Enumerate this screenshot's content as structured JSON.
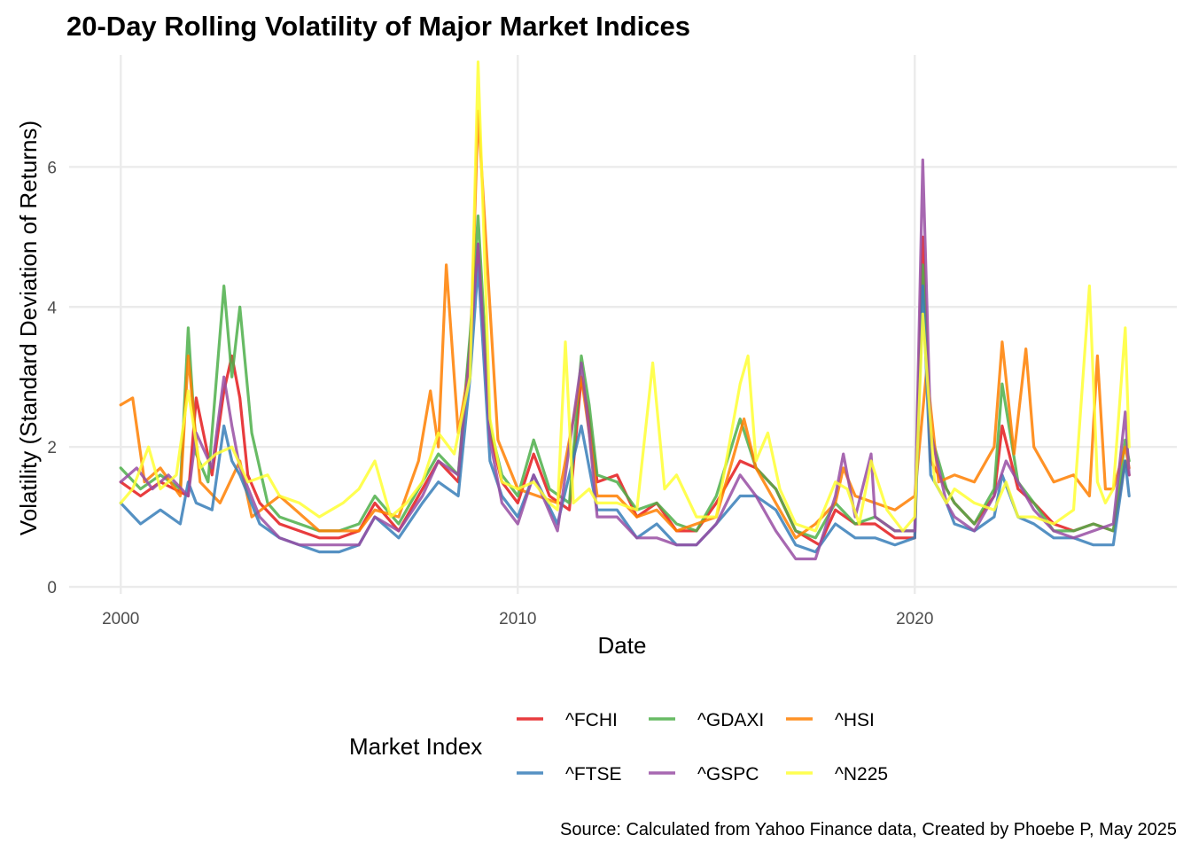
{
  "chart_data": {
    "type": "line",
    "title": "20-Day Rolling Volatility of Major Market Indices",
    "xlabel": "Date",
    "ylabel": "Volatility (Standard Deviation of Returns)",
    "caption": "Source: Calculated from Yahoo Finance data, Created by Phoebe P, May 2025",
    "xlim": [
      1998.7,
      2026.6
    ],
    "ylim": [
      -0.1,
      7.6
    ],
    "x_ticks": [
      2000,
      2010,
      2020
    ],
    "x_tick_labels": [
      "2000",
      "2010",
      "2020"
    ],
    "y_ticks": [
      0,
      2,
      4,
      6
    ],
    "y_tick_labels": [
      "0",
      "2",
      "4",
      "6"
    ],
    "grid": true,
    "legend": {
      "title": "Market Index",
      "position": "bottom",
      "rows": 2
    },
    "series": [
      {
        "name": "^FCHI",
        "color": "#E41A1C",
        "x": [
          2000.0,
          2000.5,
          2001.0,
          2001.7,
          2001.9,
          2002.3,
          2002.6,
          2002.8,
          2003.0,
          2003.2,
          2003.5,
          2004.0,
          2004.5,
          2005.0,
          2005.5,
          2006.0,
          2006.4,
          2007.0,
          2007.6,
          2008.0,
          2008.5,
          2008.8,
          2009.0,
          2009.3,
          2009.6,
          2010.0,
          2010.4,
          2010.8,
          2011.3,
          2011.6,
          2011.8,
          2012.0,
          2012.5,
          2013.0,
          2013.5,
          2014.0,
          2014.5,
          2015.0,
          2015.6,
          2016.0,
          2016.5,
          2017.0,
          2017.6,
          2018.0,
          2018.5,
          2019.0,
          2019.5,
          2020.0,
          2020.2,
          2020.4,
          2020.8,
          2021.0,
          2021.5,
          2022.0,
          2022.2,
          2022.6,
          2023.0,
          2023.5,
          2024.0,
          2024.5,
          2025.0,
          2025.3,
          2025.4
        ],
        "y": [
          1.5,
          1.3,
          1.5,
          1.3,
          2.7,
          1.6,
          2.8,
          3.3,
          2.7,
          1.6,
          1.2,
          0.9,
          0.8,
          0.7,
          0.7,
          0.8,
          1.2,
          0.8,
          1.4,
          1.8,
          1.5,
          3.5,
          4.9,
          2.2,
          1.5,
          1.2,
          1.9,
          1.3,
          1.1,
          3.0,
          2.4,
          1.5,
          1.6,
          1.0,
          1.2,
          0.8,
          0.8,
          1.2,
          1.8,
          1.7,
          1.4,
          0.8,
          0.6,
          1.1,
          0.9,
          0.9,
          0.7,
          0.7,
          5.0,
          1.8,
          1.4,
          1.2,
          0.9,
          1.3,
          2.3,
          1.4,
          1.2,
          0.9,
          0.8,
          0.9,
          0.8,
          1.8,
          1.6
        ]
      },
      {
        "name": "^GDAXI",
        "color": "#4DAF4A",
        "x": [
          2000.0,
          2000.5,
          2001.0,
          2001.5,
          2001.7,
          2001.9,
          2002.2,
          2002.6,
          2002.8,
          2003.0,
          2003.3,
          2003.7,
          2004.0,
          2004.5,
          2005.0,
          2005.5,
          2006.0,
          2006.4,
          2007.0,
          2007.6,
          2008.0,
          2008.5,
          2008.8,
          2009.0,
          2009.3,
          2009.6,
          2010.0,
          2010.4,
          2010.8,
          2011.3,
          2011.6,
          2011.8,
          2012.0,
          2012.5,
          2013.0,
          2013.5,
          2014.0,
          2014.5,
          2015.0,
          2015.6,
          2016.0,
          2016.5,
          2017.0,
          2017.5,
          2018.0,
          2018.5,
          2019.0,
          2019.5,
          2020.0,
          2020.2,
          2020.4,
          2020.8,
          2021.0,
          2021.5,
          2022.0,
          2022.2,
          2022.6,
          2023.0,
          2023.5,
          2024.0,
          2024.5,
          2025.0,
          2025.3,
          2025.4
        ],
        "y": [
          1.7,
          1.4,
          1.6,
          1.4,
          3.7,
          1.9,
          1.5,
          4.3,
          3.0,
          4.0,
          2.2,
          1.2,
          1.0,
          0.9,
          0.8,
          0.8,
          0.9,
          1.3,
          0.9,
          1.5,
          1.9,
          1.6,
          3.6,
          5.3,
          2.3,
          1.6,
          1.3,
          2.1,
          1.4,
          1.2,
          3.3,
          2.6,
          1.6,
          1.5,
          1.1,
          1.2,
          0.9,
          0.8,
          1.3,
          2.4,
          1.7,
          1.4,
          0.8,
          0.7,
          1.2,
          0.9,
          1.0,
          0.8,
          0.8,
          4.6,
          2.2,
          1.4,
          1.2,
          0.9,
          1.4,
          2.9,
          1.5,
          1.2,
          0.8,
          0.8,
          0.9,
          0.8,
          2.1,
          1.8
        ]
      },
      {
        "name": "^HSI",
        "color": "#FF7F00",
        "x": [
          2000.0,
          2000.3,
          2000.6,
          2001.0,
          2001.5,
          2001.7,
          2002.0,
          2002.5,
          2003.0,
          2003.3,
          2004.0,
          2004.4,
          2005.0,
          2006.0,
          2006.4,
          2007.0,
          2007.5,
          2007.8,
          2008.0,
          2008.2,
          2008.5,
          2008.8,
          2009.0,
          2009.5,
          2010.0,
          2010.5,
          2011.0,
          2011.6,
          2011.8,
          2012.0,
          2012.5,
          2013.0,
          2013.5,
          2014.0,
          2015.0,
          2015.5,
          2015.7,
          2016.0,
          2016.5,
          2017.0,
          2017.5,
          2018.0,
          2018.2,
          2018.5,
          2019.0,
          2019.5,
          2020.0,
          2020.3,
          2020.6,
          2021.0,
          2021.5,
          2021.8,
          2022.0,
          2022.2,
          2022.5,
          2022.8,
          2023.0,
          2023.5,
          2024.0,
          2024.4,
          2024.6,
          2024.8,
          2025.0,
          2025.3,
          2025.4
        ],
        "y": [
          2.6,
          2.7,
          1.5,
          1.7,
          1.3,
          3.3,
          1.5,
          1.2,
          1.8,
          1.0,
          1.3,
          1.1,
          0.8,
          0.8,
          1.1,
          1.0,
          1.8,
          2.8,
          2.0,
          4.6,
          2.2,
          3.2,
          6.8,
          2.1,
          1.4,
          1.3,
          1.2,
          3.0,
          2.2,
          1.3,
          1.3,
          1.0,
          1.1,
          0.8,
          1.0,
          2.0,
          2.4,
          1.7,
          1.2,
          0.7,
          0.9,
          1.2,
          1.7,
          1.3,
          1.2,
          1.1,
          1.3,
          3.1,
          1.5,
          1.6,
          1.5,
          1.8,
          2.0,
          3.5,
          1.9,
          3.4,
          2.0,
          1.5,
          1.6,
          1.3,
          3.3,
          1.4,
          1.4,
          2.0,
          1.7
        ]
      },
      {
        "name": "^FTSE",
        "color": "#377EB8",
        "x": [
          2000.0,
          2000.5,
          2001.0,
          2001.5,
          2001.7,
          2001.9,
          2002.3,
          2002.6,
          2002.8,
          2003.0,
          2003.5,
          2004.0,
          2004.5,
          2005.0,
          2005.5,
          2006.0,
          2006.4,
          2007.0,
          2007.6,
          2008.0,
          2008.5,
          2008.8,
          2009.0,
          2009.3,
          2009.6,
          2010.0,
          2010.4,
          2011.0,
          2011.6,
          2012.0,
          2012.5,
          2013.0,
          2013.5,
          2014.0,
          2014.5,
          2015.0,
          2015.6,
          2016.0,
          2016.5,
          2017.0,
          2017.5,
          2018.0,
          2018.5,
          2019.0,
          2019.5,
          2020.0,
          2020.2,
          2020.4,
          2020.8,
          2021.0,
          2021.5,
          2022.0,
          2022.2,
          2022.6,
          2023.0,
          2023.5,
          2024.0,
          2024.5,
          2025.0,
          2025.3,
          2025.4
        ],
        "y": [
          1.2,
          0.9,
          1.1,
          0.9,
          1.5,
          1.2,
          1.1,
          2.3,
          1.8,
          1.6,
          0.9,
          0.7,
          0.6,
          0.5,
          0.5,
          0.6,
          1.0,
          0.7,
          1.2,
          1.5,
          1.3,
          3.0,
          4.6,
          1.8,
          1.3,
          1.0,
          1.6,
          0.9,
          2.3,
          1.1,
          1.1,
          0.7,
          0.9,
          0.6,
          0.6,
          0.9,
          1.3,
          1.3,
          1.1,
          0.6,
          0.5,
          0.9,
          0.7,
          0.7,
          0.6,
          0.7,
          4.3,
          1.6,
          1.2,
          0.9,
          0.8,
          1.0,
          1.6,
          1.0,
          0.9,
          0.7,
          0.7,
          0.6,
          0.6,
          1.8,
          1.3
        ]
      },
      {
        "name": "^GSPC",
        "color": "#984EA3",
        "x": [
          2000.0,
          2000.4,
          2000.8,
          2001.2,
          2001.7,
          2001.9,
          2002.3,
          2002.6,
          2002.8,
          2003.0,
          2003.5,
          2004.0,
          2004.5,
          2005.0,
          2005.5,
          2006.0,
          2006.4,
          2007.0,
          2007.6,
          2008.0,
          2008.5,
          2008.8,
          2009.0,
          2009.3,
          2009.6,
          2010.0,
          2010.4,
          2011.0,
          2011.6,
          2011.8,
          2012.0,
          2012.5,
          2013.0,
          2013.5,
          2014.0,
          2014.5,
          2015.0,
          2015.6,
          2016.0,
          2016.5,
          2017.0,
          2017.5,
          2018.0,
          2018.2,
          2018.5,
          2018.9,
          2019.0,
          2019.5,
          2020.0,
          2020.2,
          2020.4,
          2020.8,
          2021.0,
          2021.5,
          2022.0,
          2022.3,
          2022.6,
          2023.0,
          2023.5,
          2024.0,
          2024.5,
          2025.0,
          2025.3,
          2025.4
        ],
        "y": [
          1.5,
          1.7,
          1.4,
          1.6,
          1.3,
          2.2,
          1.7,
          3.0,
          2.3,
          1.7,
          1.0,
          0.7,
          0.6,
          0.6,
          0.6,
          0.6,
          1.0,
          0.8,
          1.3,
          1.8,
          1.6,
          3.4,
          4.9,
          2.1,
          1.2,
          0.9,
          1.6,
          0.8,
          3.2,
          2.2,
          1.0,
          1.0,
          0.7,
          0.7,
          0.6,
          0.6,
          0.9,
          1.6,
          1.3,
          0.8,
          0.4,
          0.4,
          1.3,
          1.9,
          1.0,
          1.9,
          1.0,
          0.8,
          0.8,
          6.1,
          2.2,
          1.2,
          1.0,
          0.8,
          1.3,
          1.8,
          1.5,
          1.1,
          0.8,
          0.7,
          0.8,
          0.9,
          2.5,
          1.6
        ]
      },
      {
        "name": "^N225",
        "color": "#FFFF33",
        "x": [
          2000.0,
          2000.3,
          2000.7,
          2001.0,
          2001.4,
          2001.7,
          2002.0,
          2002.4,
          2002.8,
          2003.2,
          2003.7,
          2004.0,
          2004.5,
          2005.0,
          2005.6,
          2006.0,
          2006.4,
          2006.8,
          2007.2,
          2007.6,
          2008.0,
          2008.4,
          2008.8,
          2009.0,
          2009.3,
          2009.6,
          2010.0,
          2010.4,
          2010.8,
          2011.0,
          2011.2,
          2011.4,
          2011.8,
          2012.0,
          2012.5,
          2013.0,
          2013.4,
          2013.7,
          2014.0,
          2014.5,
          2015.0,
          2015.6,
          2015.8,
          2016.0,
          2016.3,
          2016.6,
          2017.0,
          2017.5,
          2018.0,
          2018.3,
          2018.6,
          2018.9,
          2019.3,
          2019.7,
          2020.0,
          2020.2,
          2020.5,
          2020.8,
          2021.0,
          2021.5,
          2022.0,
          2022.3,
          2022.6,
          2023.0,
          2023.5,
          2024.0,
          2024.4,
          2024.6,
          2024.8,
          2025.0,
          2025.3,
          2025.4
        ],
        "y": [
          1.2,
          1.4,
          2.0,
          1.4,
          1.6,
          2.8,
          1.7,
          1.9,
          2.0,
          1.5,
          1.6,
          1.3,
          1.2,
          1.0,
          1.2,
          1.4,
          1.8,
          1.0,
          1.2,
          1.5,
          2.2,
          1.9,
          3.0,
          7.5,
          2.4,
          1.5,
          1.4,
          1.5,
          1.2,
          1.1,
          3.5,
          1.2,
          1.4,
          1.2,
          1.2,
          1.1,
          3.2,
          1.4,
          1.6,
          1.0,
          1.0,
          2.9,
          3.3,
          1.8,
          2.2,
          1.4,
          0.9,
          0.8,
          1.5,
          1.4,
          0.9,
          1.8,
          1.1,
          0.8,
          1.0,
          3.9,
          1.5,
          1.2,
          1.4,
          1.2,
          1.1,
          1.5,
          1.0,
          1.0,
          0.9,
          1.1,
          4.3,
          1.5,
          1.2,
          1.4,
          3.7,
          2.0
        ]
      }
    ]
  }
}
